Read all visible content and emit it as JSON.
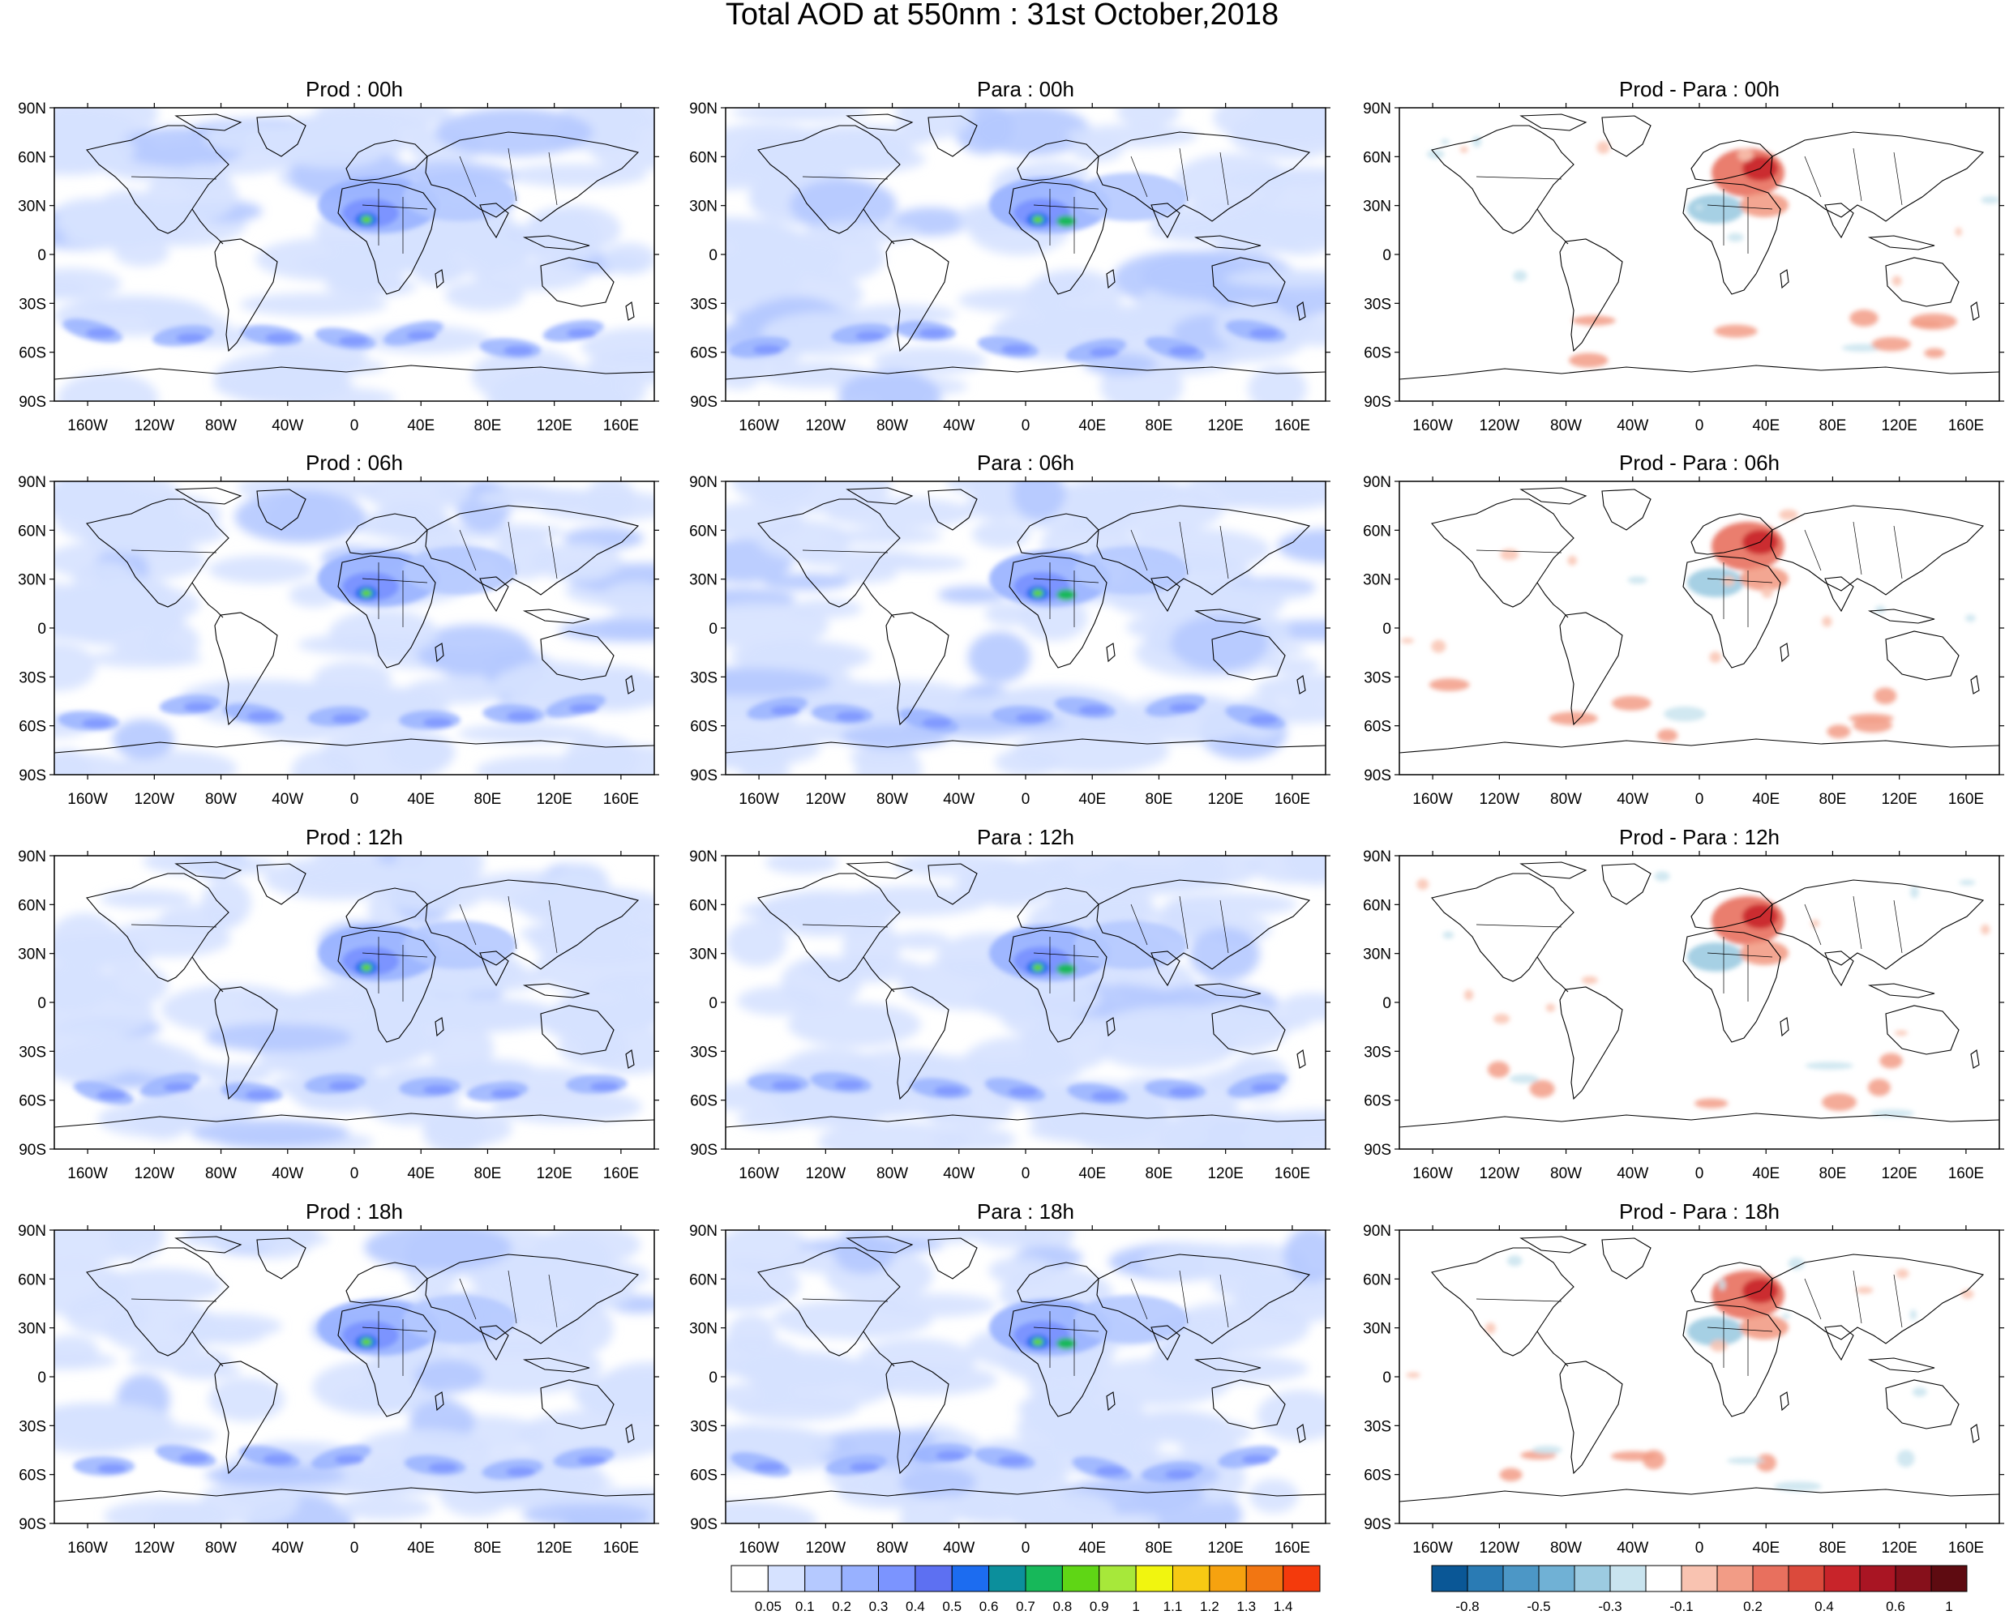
{
  "title": "Total AOD at 550nm : 31st October,2018",
  "columns": [
    "Prod",
    "Para",
    "Prod - Para"
  ],
  "hours": [
    "00h",
    "06h",
    "12h",
    "18h"
  ],
  "panel_titles": [
    [
      "Prod : 00h",
      "Para : 00h",
      "Prod - Para : 00h"
    ],
    [
      "Prod : 06h",
      "Para : 06h",
      "Prod - Para : 06h"
    ],
    [
      "Prod : 12h",
      "Para : 12h",
      "Prod - Para : 12h"
    ],
    [
      "Prod : 18h",
      "Para : 18h",
      "Prod - Para : 18h"
    ]
  ],
  "lat_labels": [
    "90N",
    "60N",
    "30N",
    "0",
    "30S",
    "60S",
    "90S"
  ],
  "lon_labels": [
    "160W",
    "120W",
    "80W",
    "40W",
    "0",
    "40E",
    "80E",
    "120E",
    "160E"
  ],
  "aod_colorbar": {
    "labels": [
      "0.05",
      "0.1",
      "0.2",
      "0.3",
      "0.4",
      "0.5",
      "0.6",
      "0.7",
      "0.8",
      "0.9",
      "1",
      "1.1",
      "1.2",
      "1.3",
      "1.4"
    ],
    "colors": [
      "#ffffff",
      "#d6e2ff",
      "#b5c9ff",
      "#98b1ff",
      "#7b94ff",
      "#5d70f2",
      "#1c6cf0",
      "#0c8f9c",
      "#17b85a",
      "#5fd615",
      "#a7e83a",
      "#f1f50f",
      "#f7c913",
      "#f6a20f",
      "#f27612",
      "#f43a0c"
    ]
  },
  "diff_colorbar": {
    "labels": [
      "-0.8",
      "-0.5",
      "-0.3",
      "-0.1",
      "0.2",
      "0.4",
      "0.6",
      "1"
    ],
    "colors": [
      "#0a5796",
      "#2a7bb4",
      "#4c97c6",
      "#70b1d5",
      "#9ccbe1",
      "#c9e4ef",
      "#ffffff",
      "#f9c3b1",
      "#f29c86",
      "#e8705e",
      "#db4a3c",
      "#c8242a",
      "#a91523",
      "#86101b",
      "#5e0b11"
    ]
  }
}
